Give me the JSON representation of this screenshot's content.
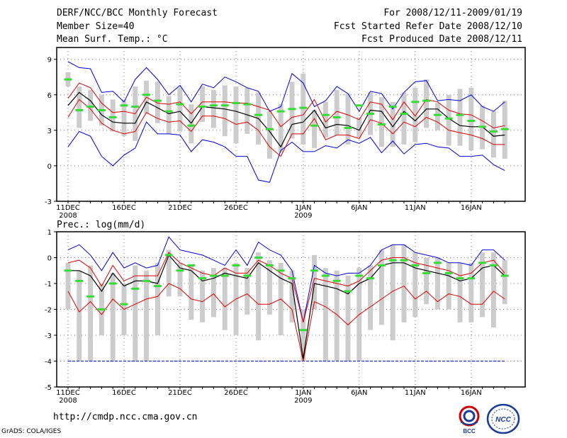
{
  "header": {
    "title": "DERF/NCC/BCC Monthly Forecast",
    "member_size": "Member Size=40",
    "variable": "Mean Surf. Temp.: °C",
    "period": "For 2008/12/11-2009/01/19",
    "started": "Fcst Started Refer Date 2008/12/10",
    "produced": "Fcst Produced Date 2008/12/11"
  },
  "footer": {
    "url": "http://cmdp.ncc.cma.gov.cn",
    "credit": "GrADS: COLA/IGES"
  },
  "logos": {
    "bcc": "BCC",
    "ncc": "NCC"
  },
  "chart_data": [
    {
      "type": "line",
      "title": "Mean Surf. Temp.: °C",
      "ylim": [
        -3,
        10
      ],
      "yticks": [
        -3,
        0,
        3,
        6,
        9
      ],
      "xtick_labels": [
        {
          "day": 0,
          "label": "11DEC",
          "sub": "2008"
        },
        {
          "day": 5,
          "label": "16DEC",
          "sub": ""
        },
        {
          "day": 10,
          "label": "21DEC",
          "sub": ""
        },
        {
          "day": 15,
          "label": "26DEC",
          "sub": ""
        },
        {
          "day": 21,
          "label": "1JAN",
          "sub": "2009"
        },
        {
          "day": 26,
          "label": "6JAN",
          "sub": ""
        },
        {
          "day": 31,
          "label": "11JAN",
          "sub": ""
        },
        {
          "day": 36,
          "label": "16JAN",
          "sub": ""
        }
      ],
      "colors": {
        "max": "#0000dd",
        "spread": "#dd0000",
        "mean": "#000000",
        "observed": "#33dd33",
        "box": "#cccccc"
      },
      "series": [
        {
          "name": "max",
          "values": [
            8.8,
            8.3,
            8.2,
            6.2,
            6.3,
            5.4,
            7.3,
            8.3,
            7.3,
            6,
            6.8,
            5.4,
            6.9,
            6.6,
            7.5,
            7.1,
            6.6,
            6.3,
            4.6,
            5,
            7.8,
            7,
            5,
            5.5,
            6.7,
            6.1,
            4.6,
            6.3,
            6.1,
            4.8,
            6.2,
            7.1,
            7.2,
            5.5,
            5.6,
            5.5,
            6,
            5,
            4.6,
            5.4
          ]
        },
        {
          "name": "upper",
          "values": [
            5.7,
            7,
            6.6,
            5.3,
            4.5,
            4.6,
            4.4,
            5.8,
            5.3,
            5.2,
            5.4,
            4.4,
            5.4,
            5.4,
            5.4,
            5.3,
            5.3,
            5,
            4.7,
            3.3,
            4.1,
            4.3,
            5.6,
            3.7,
            4.6,
            4.3,
            3.9,
            5.4,
            5.2,
            3.9,
            5.4,
            4.2,
            5.6,
            5.4,
            4.7,
            4.4,
            4.3,
            3.8,
            3.2,
            3.4
          ]
        },
        {
          "name": "mean",
          "values": [
            5.1,
            6.2,
            5.5,
            4.3,
            3.7,
            3.6,
            3.6,
            5.4,
            4.9,
            4.4,
            4.6,
            3.6,
            5,
            4.9,
            4.8,
            4.6,
            4.3,
            4,
            2.9,
            1.6,
            3.5,
            3.7,
            4.7,
            3.2,
            3.5,
            3.4,
            3,
            4.7,
            4.6,
            3.3,
            4.6,
            3.8,
            4.8,
            4.8,
            4,
            3.4,
            3.3,
            3.3,
            2.5,
            2.6
          ]
        },
        {
          "name": "lower",
          "values": [
            4.1,
            5.6,
            4.8,
            3.6,
            3,
            2.7,
            2.9,
            4.5,
            4,
            3.7,
            3.8,
            2.9,
            4.2,
            4.2,
            4,
            3.5,
            3.7,
            3,
            1.6,
            0.8,
            2.7,
            2.7,
            4,
            2.2,
            2.6,
            2.6,
            2.3,
            3.9,
            3.6,
            2.7,
            3.7,
            3.3,
            4.1,
            3.7,
            3,
            2.8,
            2.6,
            2.3,
            1.8,
            1.8
          ]
        },
        {
          "name": "min",
          "values": [
            1.6,
            2.9,
            2.5,
            0.8,
            0,
            0.9,
            1.5,
            3.7,
            2.7,
            2.7,
            2.6,
            1.2,
            2.2,
            2,
            1.6,
            0.8,
            0.8,
            -1.2,
            -1.4,
            1.3,
            2,
            1.2,
            1.2,
            1.7,
            1.5,
            2.2,
            1.9,
            2.4,
            1.1,
            2.1,
            1,
            1.8,
            1.9,
            1.6,
            1.5,
            0.8,
            0.8,
            0.9,
            0.1,
            -0.4
          ]
        },
        {
          "name": "observed",
          "values": [
            7.3,
            4.7,
            5,
            4.7,
            4.1,
            5.1,
            5,
            6,
            5.5,
            4.6,
            5.2,
            3.4,
            5,
            5.1,
            5.1,
            5.3,
            5.2,
            4.3,
            3.1,
            4.6,
            4.8,
            4.9,
            3.4,
            4.3,
            4.1,
            3.2,
            5.1,
            4.4,
            3.5,
            5,
            4.4,
            5.4,
            5.5,
            4.3,
            4,
            4.3,
            3.8,
            3.3,
            2.9,
            3.1
          ]
        },
        {
          "name": "box_top",
          "values": [
            7.9,
            6.7,
            6.4,
            6,
            5.6,
            5.6,
            6.7,
            7.2,
            7.1,
            5.9,
            6.6,
            5.2,
            6.7,
            6.4,
            6.8,
            6.7,
            6.6,
            6.2,
            4.6,
            5.2,
            7.1,
            7.8,
            4.7,
            5.4,
            6.4,
            6.1,
            4.1,
            6.2,
            5.8,
            5.4,
            6.2,
            6.6,
            7.3,
            5.3,
            6,
            6.5,
            6.6,
            5.1,
            4.6,
            5.5
          ]
        },
        {
          "name": "box_bottom",
          "values": [
            6.7,
            3.2,
            3.8,
            3.4,
            2.9,
            2.5,
            2.1,
            4.4,
            3.6,
            2.7,
            2.9,
            1.9,
            3.7,
            3.2,
            2.5,
            1.9,
            2.7,
            1.8,
            0.6,
            1.1,
            2.3,
            1.8,
            1.5,
            2.4,
            2.6,
            1.8,
            2.4,
            2.6,
            1.6,
            1.6,
            1.8,
            2,
            3.2,
            3,
            1.7,
            1.7,
            1.3,
            1.4,
            0.7,
            0.6
          ]
        }
      ]
    },
    {
      "type": "line",
      "title": "Prec.: log(mm/d)",
      "ylim": [
        -5,
        1
      ],
      "yticks": [
        -5,
        -4,
        -3,
        -2,
        -1,
        0,
        1
      ],
      "xtick_labels": [
        {
          "day": 0,
          "label": "11DEC",
          "sub": "2008"
        },
        {
          "day": 5,
          "label": "16DEC",
          "sub": ""
        },
        {
          "day": 10,
          "label": "21DEC",
          "sub": ""
        },
        {
          "day": 15,
          "label": "26DEC",
          "sub": ""
        },
        {
          "day": 21,
          "label": "1JAN",
          "sub": "2009"
        },
        {
          "day": 26,
          "label": "6JAN",
          "sub": ""
        },
        {
          "day": 31,
          "label": "11JAN",
          "sub": ""
        },
        {
          "day": 36,
          "label": "16JAN",
          "sub": ""
        }
      ],
      "reference_line": -4,
      "colors": {
        "max": "#0000dd",
        "spread": "#dd0000",
        "mean": "#000000",
        "observed": "#33dd33",
        "box": "#cccccc",
        "reference": "#0000dd"
      },
      "series": [
        {
          "name": "max",
          "values": [
            0.3,
            0.5,
            0.1,
            -0.5,
            0.2,
            -0.4,
            -0.2,
            -0.4,
            -0.3,
            0.8,
            0.3,
            0.2,
            0.1,
            -0.1,
            -0.3,
            0.3,
            -0.3,
            0.6,
            0.3,
            0.1,
            -0.5,
            -2.5,
            -0.3,
            -0.6,
            -0.7,
            -0.6,
            -0.6,
            -0.3,
            0.3,
            0.5,
            0.5,
            0.2,
            0.1,
            0,
            -0.2,
            -0.2,
            -0.3,
            0.3,
            0.3,
            -0.1
          ]
        },
        {
          "name": "upper",
          "values": [
            -0.2,
            -0.1,
            -0.4,
            -1.1,
            -0.3,
            -0.9,
            -0.7,
            -0.7,
            -0.7,
            0.2,
            -0.2,
            -0.4,
            -0.6,
            -0.7,
            -0.4,
            -0.6,
            -0.6,
            -0.1,
            -0.3,
            -0.6,
            -0.8,
            -2.5,
            -0.8,
            -0.9,
            -1,
            -1.1,
            -0.9,
            -0.5,
            -0.1,
            0,
            0,
            -0.2,
            -0.3,
            -0.4,
            -0.5,
            -0.7,
            -0.6,
            -0.2,
            -0.1,
            -0.6
          ]
        },
        {
          "name": "mean",
          "values": [
            -0.5,
            -0.5,
            -0.7,
            -1.3,
            -0.6,
            -1.1,
            -0.9,
            -0.9,
            -1,
            0.1,
            -0.4,
            -0.5,
            -0.9,
            -0.8,
            -0.6,
            -0.7,
            -0.8,
            -0.2,
            -0.5,
            -0.8,
            -1,
            -3.9,
            -1,
            -1.1,
            -1.2,
            -1.4,
            -1,
            -0.8,
            -0.3,
            -0.2,
            -0.2,
            -0.4,
            -0.5,
            -0.6,
            -0.7,
            -0.9,
            -0.8,
            -0.4,
            -0.3,
            -0.7
          ]
        },
        {
          "name": "lower",
          "values": [
            -1.3,
            -2.1,
            -1.7,
            -2.2,
            -1.6,
            -2,
            -1.8,
            -1.6,
            -1.5,
            -1,
            -1.2,
            -1.6,
            -1.7,
            -1.4,
            -1.9,
            -1.6,
            -1.4,
            -1.8,
            -1.8,
            -1.6,
            -2,
            -4,
            -1.7,
            -1.9,
            -2.2,
            -2.6,
            -2.2,
            -1.9,
            -1.6,
            -1.3,
            -1.1,
            -1.6,
            -1.3,
            -1.7,
            -1.4,
            -1.5,
            -1.8,
            -1.8,
            -1.3,
            -1.6
          ]
        },
        {
          "name": "observed",
          "values": [
            -0.5,
            -0.9,
            -1.5,
            -2,
            -1,
            -1.8,
            -1.2,
            -0.9,
            -1.1,
            0.1,
            -0.5,
            -0.3,
            -0.8,
            -0.7,
            -0.7,
            -0.3,
            -0.7,
            0,
            -0.3,
            -0.5,
            -0.8,
            -2.8,
            -0.5,
            -0.7,
            -0.9,
            -1.3,
            -0.7,
            -0.8,
            -0.3,
            -0.1,
            -0.1,
            -0.3,
            -0.6,
            -0.2,
            -0.6,
            -0.8,
            -0.8,
            -0.2,
            -0.3,
            -0.7
          ]
        },
        {
          "name": "box_top",
          "values": [
            -0.2,
            -0.5,
            -0.3,
            -1,
            -0.6,
            -1,
            -0.3,
            -0.5,
            -0.2,
            0.3,
            -0.2,
            -0.3,
            -0.5,
            -0.4,
            -0.4,
            -0.2,
            -0.4,
            0.2,
            -0.1,
            -0.2,
            -0.5,
            -2,
            0.1,
            -0.4,
            -0.5,
            -0.7,
            -0.4,
            -0.3,
            0.3,
            0.5,
            0.5,
            0.2,
            0,
            0,
            -0.2,
            -0.2,
            -0.2,
            0.2,
            0.2,
            -0.1
          ]
        },
        {
          "name": "box_bottom",
          "values": [
            -2,
            -4,
            -4,
            -3,
            -4,
            -3,
            -4,
            -4,
            -3,
            -1.5,
            -1.5,
            -2.4,
            -2.5,
            -2.3,
            -2.8,
            -3,
            -2.2,
            -3.2,
            -2.2,
            -3,
            -2.5,
            -4,
            -2,
            -4,
            -4,
            -4,
            -4,
            -2.8,
            -2.6,
            -3.2,
            -2.5,
            -2.3,
            -1.8,
            -2,
            -2,
            -2.5,
            -2.5,
            -2.3,
            -2.7,
            -1.8
          ]
        }
      ]
    }
  ]
}
